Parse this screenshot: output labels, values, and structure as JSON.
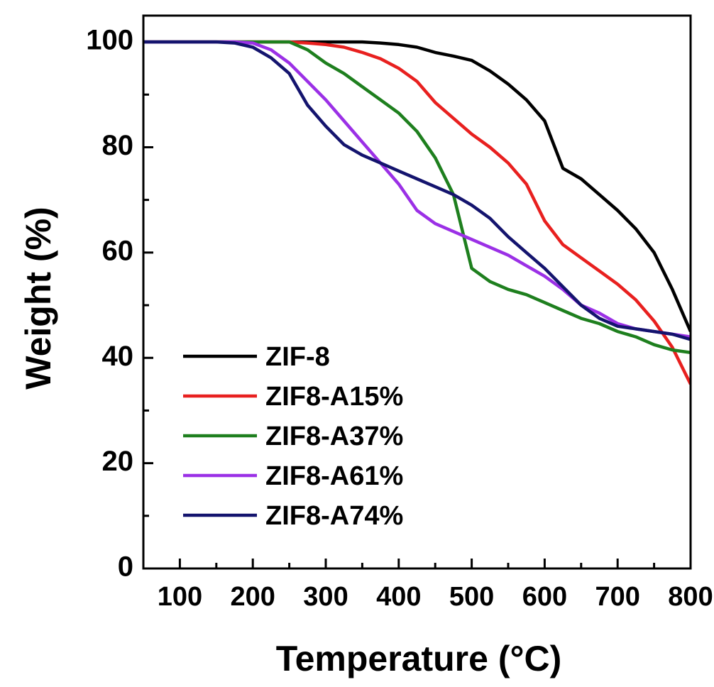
{
  "chart_data": {
    "type": "line",
    "xlabel": "Temperature (°C)",
    "ylabel": "Weight (%)",
    "x": [
      50,
      75,
      100,
      125,
      150,
      175,
      200,
      225,
      250,
      275,
      300,
      325,
      350,
      375,
      400,
      425,
      450,
      475,
      500,
      525,
      550,
      575,
      600,
      625,
      650,
      675,
      700,
      725,
      750,
      775,
      800
    ],
    "series": [
      {
        "name": "ZIF-8",
        "color": "#000000",
        "values": [
          100,
          100,
          100,
          100,
          100,
          100,
          100,
          100,
          100,
          100,
          100,
          100,
          100,
          99.8,
          99.5,
          99,
          98,
          97.3,
          96.5,
          94.5,
          92,
          89,
          85,
          76,
          74,
          71,
          68,
          64.5,
          60,
          53,
          45
        ]
      },
      {
        "name": "ZIF8-A15%",
        "color": "#e8201f",
        "values": [
          100,
          100,
          100,
          100,
          100,
          100,
          100,
          100,
          100,
          99.8,
          99.5,
          99,
          98,
          96.8,
          95,
          92.5,
          88.5,
          85.5,
          82.5,
          80,
          77,
          73,
          66,
          61.5,
          59,
          56.5,
          54,
          51,
          47,
          42,
          35
        ]
      },
      {
        "name": "ZIF8-A37%",
        "color": "#1e7f1e",
        "values": [
          100,
          100,
          100,
          100,
          100,
          100,
          100,
          100,
          100,
          98.5,
          96,
          94,
          91.5,
          89,
          86.5,
          83,
          78,
          71,
          57,
          54.5,
          53,
          52,
          50.5,
          49,
          47.5,
          46.5,
          45,
          44,
          42.5,
          41.5,
          41
        ]
      },
      {
        "name": "ZIF8-A61%",
        "color": "#9b30e6",
        "values": [
          100,
          100,
          100,
          100,
          100,
          100,
          99.8,
          98.5,
          96,
          92.5,
          89,
          85,
          81,
          77,
          73,
          68,
          65.5,
          64,
          62.5,
          61,
          59.5,
          57.5,
          55.5,
          53,
          50,
          48.5,
          46.5,
          45.5,
          45,
          44.5,
          44
        ]
      },
      {
        "name": "ZIF8-A74%",
        "color": "#14146e",
        "values": [
          100,
          100,
          100,
          100,
          100,
          99.8,
          99,
          97,
          94,
          88,
          84,
          80.5,
          78.5,
          77,
          75.5,
          74,
          72.5,
          71,
          69,
          66.5,
          63,
          60,
          57,
          53.5,
          50,
          47.5,
          46,
          45.5,
          45,
          44.5,
          43.5
        ]
      }
    ],
    "xlim": [
      50,
      800
    ],
    "ylim": [
      0,
      105
    ],
    "xticks": [
      100,
      200,
      300,
      400,
      500,
      600,
      700,
      800
    ],
    "yticks": [
      0,
      20,
      40,
      60,
      80,
      100
    ],
    "xminorticks": [
      150,
      250,
      350,
      450,
      550,
      650,
      750
    ],
    "yminorticks": [
      10,
      30,
      50,
      70,
      90
    ],
    "legend": "lower left",
    "grid": false
  }
}
